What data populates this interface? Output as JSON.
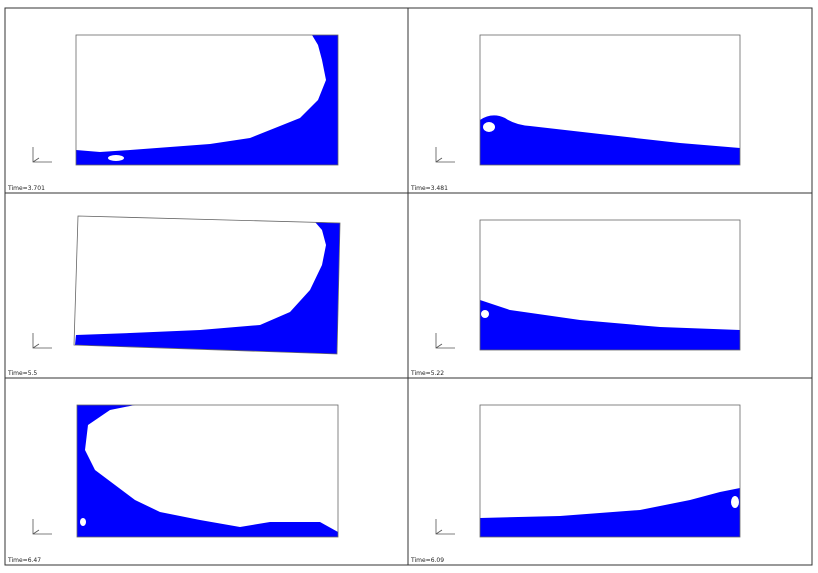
{
  "panels": [
    {
      "time_label": "Time=3.701"
    },
    {
      "time_label": "Time=3.481"
    },
    {
      "time_label": "Time=5.5"
    },
    {
      "time_label": "Time=5.22"
    },
    {
      "time_label": "Time=6.47"
    },
    {
      "time_label": "Time=6.09"
    }
  ]
}
